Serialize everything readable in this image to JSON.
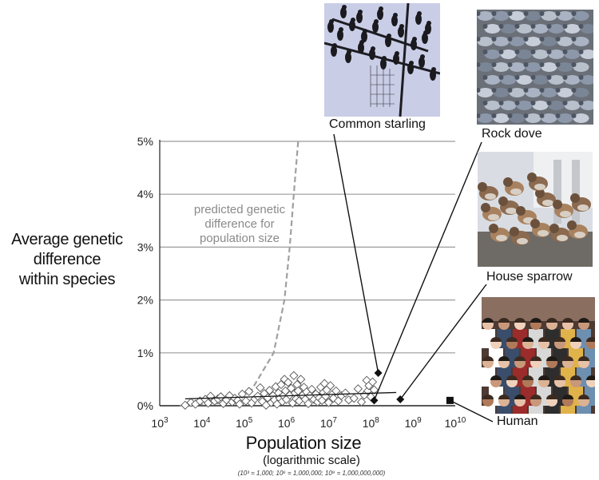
{
  "chart_data": {
    "type": "scatter",
    "title": "",
    "ylabel_lines": [
      "Average genetic",
      "difference",
      "within species"
    ],
    "xlabel": "Population size",
    "xlabel_sub": "(logarithmic scale)",
    "xlabel_note": "(10³ = 1,000; 10⁶ = 1,000,000; 10⁹ = 1,000,000,000)",
    "x_scale": "log",
    "xlim": [
      1000,
      10000000000
    ],
    "ylim": [
      0,
      5
    ],
    "grid": true,
    "y_ticks": [
      {
        "value": 0,
        "label": "0%"
      },
      {
        "value": 1,
        "label": "1%"
      },
      {
        "value": 2,
        "label": "2%"
      },
      {
        "value": 3,
        "label": "3%"
      },
      {
        "value": 4,
        "label": "4%"
      },
      {
        "value": 5,
        "label": "5%"
      }
    ],
    "x_ticks": [
      {
        "value": 1000,
        "base": "10",
        "exp": "3"
      },
      {
        "value": 10000,
        "base": "10",
        "exp": "4"
      },
      {
        "value": 100000,
        "base": "10",
        "exp": "5"
      },
      {
        "value": 1000000,
        "base": "10",
        "exp": "6"
      },
      {
        "value": 10000000,
        "base": "10",
        "exp": "7"
      },
      {
        "value": 100000000,
        "base": "10",
        "exp": "8"
      },
      {
        "value": 1000000000,
        "base": "10",
        "exp": "9"
      },
      {
        "value": 10000000000,
        "base": "10",
        "exp": "10"
      }
    ],
    "prediction_label_lines": [
      "predicted genetic",
      "difference for",
      "population size"
    ],
    "prediction_curve": [
      {
        "x": 3000,
        "y": 0
      },
      {
        "x": 30000,
        "y": 0.05
      },
      {
        "x": 150000,
        "y": 0.3
      },
      {
        "x": 500000,
        "y": 1.0
      },
      {
        "x": 900000,
        "y": 2.0
      },
      {
        "x": 1200000,
        "y": 3.0
      },
      {
        "x": 1500000,
        "y": 4.0
      },
      {
        "x": 1900000,
        "y": 5.0
      }
    ],
    "trend_line": [
      {
        "x": 4000,
        "y": 0.13
      },
      {
        "x": 400000000,
        "y": 0.25
      }
    ],
    "species_points": [
      [
        4000,
        0.01
      ],
      [
        5500,
        0.06
      ],
      [
        7000,
        0.03
      ],
      [
        9000,
        0.09
      ],
      [
        12000,
        0.12
      ],
      [
        14000,
        0.05
      ],
      [
        16000,
        0.18
      ],
      [
        20000,
        0.09
      ],
      [
        24000,
        0.13
      ],
      [
        28000,
        0.17
      ],
      [
        32000,
        0.04
      ],
      [
        38000,
        0.11
      ],
      [
        45000,
        0.19
      ],
      [
        52000,
        0.07
      ],
      [
        60000,
        0.14
      ],
      [
        70000,
        0.1
      ],
      [
        78000,
        0.03
      ],
      [
        90000,
        0.22
      ],
      [
        110000,
        0.09
      ],
      [
        130000,
        0.27
      ],
      [
        150000,
        0.05
      ],
      [
        180000,
        0.13
      ],
      [
        210000,
        0.18
      ],
      [
        240000,
        0.34
      ],
      [
        270000,
        0.08
      ],
      [
        300000,
        0.23
      ],
      [
        330000,
        0.01
      ],
      [
        360000,
        0.15
      ],
      [
        400000,
        0.29
      ],
      [
        440000,
        0.06
      ],
      [
        480000,
        0.19
      ],
      [
        520000,
        0.11
      ],
      [
        560000,
        0.36
      ],
      [
        600000,
        0.03
      ],
      [
        650000,
        0.24
      ],
      [
        700000,
        0.14
      ],
      [
        750000,
        0.4
      ],
      [
        800000,
        0.08
      ],
      [
        850000,
        0.19
      ],
      [
        900000,
        0.5
      ],
      [
        950000,
        0.28
      ],
      [
        1000000,
        0.12
      ],
      [
        1100000,
        0.44
      ],
      [
        1200000,
        0.2
      ],
      [
        1300000,
        0.33
      ],
      [
        1400000,
        0.05
      ],
      [
        1500000,
        0.57
      ],
      [
        1600000,
        0.24
      ],
      [
        1700000,
        0.13
      ],
      [
        1800000,
        0.4
      ],
      [
        1900000,
        0.28
      ],
      [
        2000000,
        0.09
      ],
      [
        2200000,
        0.5
      ],
      [
        2400000,
        0.2
      ],
      [
        2600000,
        0.35
      ],
      [
        2800000,
        0.12
      ],
      [
        3000000,
        0.26
      ],
      [
        3300000,
        0.04
      ],
      [
        3600000,
        0.19
      ],
      [
        4000000,
        0.31
      ],
      [
        4500000,
        0.12
      ],
      [
        5000000,
        0.22
      ],
      [
        5500000,
        0.07
      ],
      [
        6000000,
        0.15
      ],
      [
        6500000,
        0.35
      ],
      [
        7000000,
        0.1
      ],
      [
        7500000,
        0.25
      ],
      [
        8000000,
        0.42
      ],
      [
        8500000,
        0.18
      ],
      [
        9000000,
        0.3
      ],
      [
        10000000,
        0.06
      ],
      [
        11000000,
        0.38
      ],
      [
        12000000,
        0.21
      ],
      [
        13000000,
        0.14
      ],
      [
        15000000,
        0.28
      ],
      [
        17000000,
        0.09
      ],
      [
        20000000,
        0.19
      ],
      [
        25000000,
        0.24
      ],
      [
        30000000,
        0.11
      ],
      [
        40000000,
        0.14
      ],
      [
        50000000,
        0.32
      ],
      [
        60000000,
        0.07
      ],
      [
        70000000,
        0.2
      ],
      [
        80000000,
        0.48
      ],
      [
        85000000,
        0.28
      ],
      [
        90000000,
        0.38
      ],
      [
        100000000,
        0.17
      ],
      [
        110000000,
        0.45
      ],
      [
        120000000,
        0.3
      ]
    ],
    "highlighted": [
      {
        "name": "Common starling",
        "x": 150000000,
        "y": 0.62,
        "marker": "diamond",
        "photo": "starlings"
      },
      {
        "name": "Rock dove",
        "x": 120000000,
        "y": 0.1,
        "marker": "diamond",
        "photo": "pigeons"
      },
      {
        "name": "House sparrow",
        "x": 500000000,
        "y": 0.12,
        "marker": "diamond",
        "photo": "sparrows"
      },
      {
        "name": "Human",
        "x": 7500000000,
        "y": 0.1,
        "marker": "square",
        "photo": "crowd"
      }
    ]
  }
}
